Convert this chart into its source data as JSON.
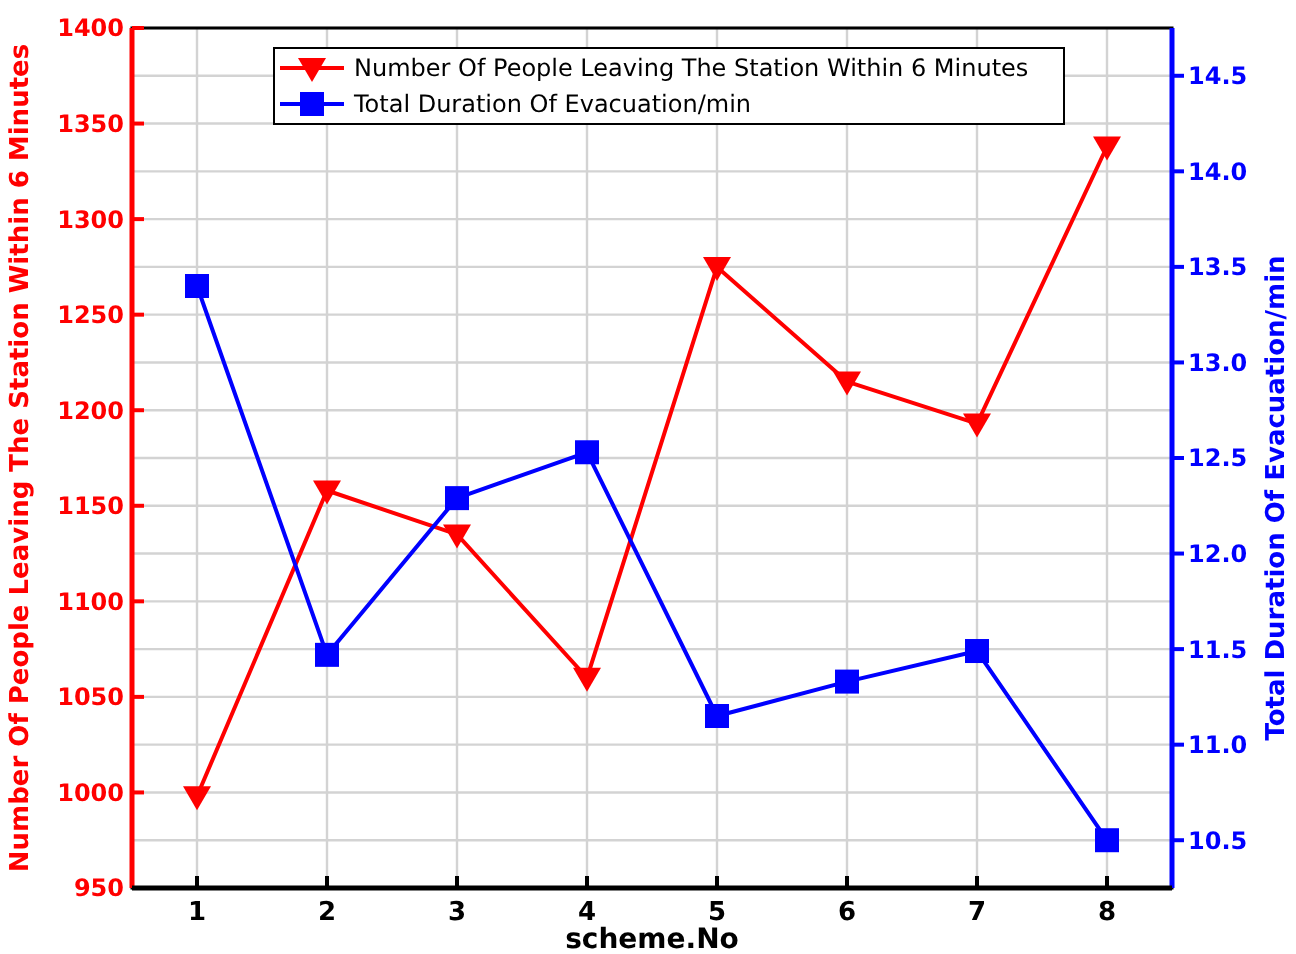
{
  "chart_data": {
    "type": "line",
    "xlabel": "scheme.No",
    "ylabel": "Number Of People Leaving The Station Within 6 Minutes",
    "y2label": "Total Duration Of Evacuation/min",
    "x": [
      1,
      2,
      3,
      4,
      5,
      6,
      7,
      8
    ],
    "series": [
      {
        "name": "Number Of People Leaving The Station Within 6 Minutes",
        "color": "#ff0000",
        "marker": "triangle",
        "values": [
          998,
          1158,
          1135,
          1060,
          1275,
          1215,
          1193,
          1338
        ]
      },
      {
        "name": "Total Duration Of Evacuation/min",
        "color": "#0000ff",
        "marker": "square",
        "axis": "y2",
        "values": [
          13.4,
          11.47,
          12.29,
          12.53,
          11.15,
          11.33,
          11.49,
          10.5
        ]
      }
    ],
    "xlim": [
      0.5,
      8.5
    ],
    "xticks": [
      1,
      2,
      3,
      4,
      5,
      6,
      7,
      8
    ],
    "ylim": [
      950,
      1400
    ],
    "yticks": [
      950,
      1000,
      1050,
      1100,
      1150,
      1200,
      1250,
      1300,
      1350,
      1400
    ],
    "y2lim": [
      10.25,
      14.75
    ],
    "y2ticks": [
      {
        "value": 10.5,
        "label": "10.5"
      },
      {
        "value": 11,
        "label": "11.0"
      },
      {
        "value": 11.5,
        "label": "11.5"
      },
      {
        "value": 12,
        "label": "12.0"
      },
      {
        "value": 12.5,
        "label": "12.5"
      },
      {
        "value": 13,
        "label": "13.0"
      },
      {
        "value": 13.5,
        "label": "13.5"
      },
      {
        "value": 14,
        "label": "14.0"
      },
      {
        "value": 14.5,
        "label": "14.5"
      }
    ],
    "grid": true,
    "legend": "top",
    "line_style": "solid"
  }
}
